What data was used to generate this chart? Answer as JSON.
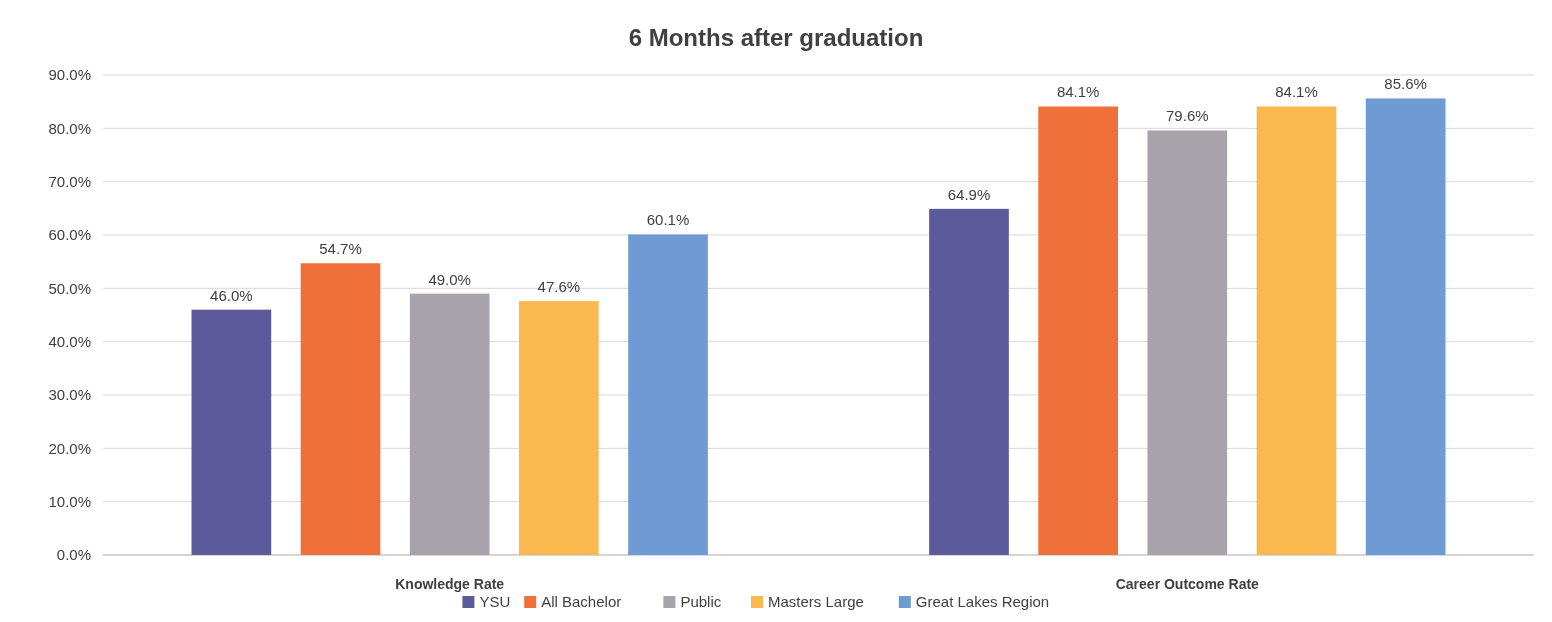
{
  "chart_data": {
    "type": "bar",
    "title": "6 Months after graduation",
    "categories": [
      "Knowledge Rate",
      "Career Outcome Rate"
    ],
    "series": [
      {
        "name": "YSU",
        "color": "#5b5a9a",
        "values": [
          46.0,
          64.9
        ],
        "value_labels": [
          "46.0%",
          "64.9%"
        ]
      },
      {
        "name": "All Bachelor",
        "color": "#f0703a",
        "values": [
          54.7,
          84.1
        ],
        "value_labels": [
          "54.7%",
          "84.1%"
        ]
      },
      {
        "name": "Public",
        "color": "#a8a3ab",
        "values": [
          49.0,
          79.6
        ],
        "value_labels": [
          "49.0%",
          "79.6%"
        ]
      },
      {
        "name": "Masters Large",
        "color": "#fbb84e",
        "values": [
          47.6,
          84.1
        ],
        "value_labels": [
          "47.6%",
          "84.1%"
        ]
      },
      {
        "name": "Great Lakes Region",
        "color": "#6f9bd4",
        "values": [
          60.1,
          85.6
        ],
        "value_labels": [
          "60.1%",
          "85.6%"
        ]
      }
    ],
    "ylim": [
      0,
      90
    ],
    "yticks": [
      {
        "value": 0,
        "label": "0.0%"
      },
      {
        "value": 10,
        "label": "10.0%"
      },
      {
        "value": 20,
        "label": "20.0%"
      },
      {
        "value": 30,
        "label": "30.0%"
      },
      {
        "value": 40,
        "label": "40.0%"
      },
      {
        "value": 50,
        "label": "50.0%"
      },
      {
        "value": 60,
        "label": "60.0%"
      },
      {
        "value": 70,
        "label": "70.0%"
      },
      {
        "value": 80,
        "label": "80.0%"
      },
      {
        "value": 90,
        "label": "90.0%"
      }
    ],
    "grid": "y",
    "legend": "bottom"
  }
}
